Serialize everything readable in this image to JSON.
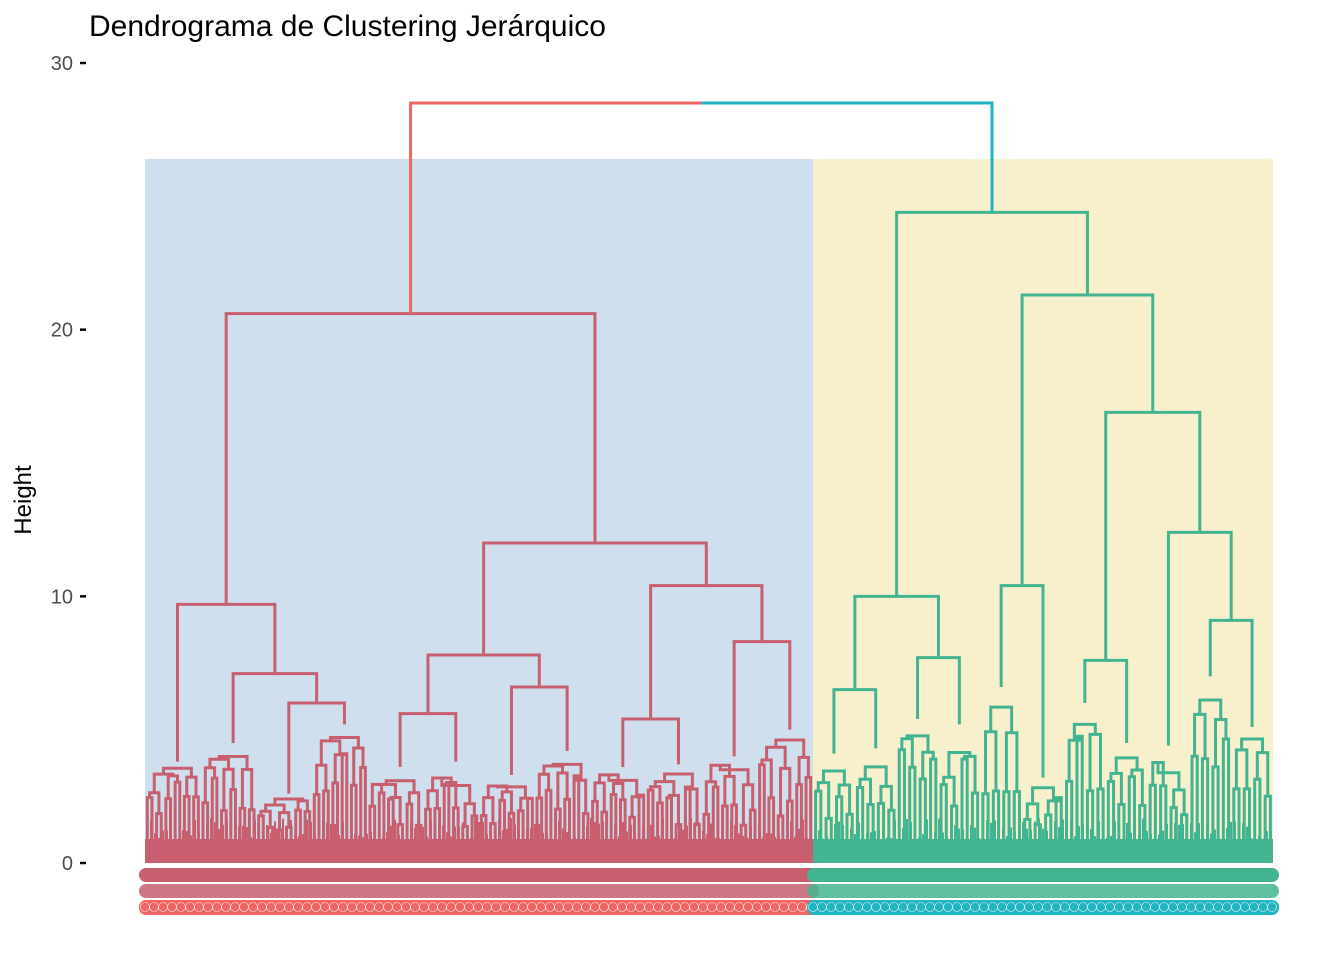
{
  "chart_data": {
    "type": "dendrogram",
    "title": "Dendrograma de Clustering Jerárquico",
    "xlabel": "",
    "ylabel": "Height",
    "ylim": [
      0,
      30
    ],
    "yticks": [
      0,
      10,
      20,
      30
    ],
    "grid": false,
    "legend": "none",
    "root_height": 28.5,
    "clusters": [
      {
        "id": 1,
        "color": "#C75F6E",
        "label_color": "#F06462",
        "rect_color": "#CFDFEE",
        "rect_top": 26.4,
        "merge_height": 20.6,
        "subclusters": [
          {
            "height": 9.7,
            "children": [
              {
                "height": 3.8
              },
              {
                "height": 7.1,
                "children": [
                  {
                    "height": 4.5
                  },
                  {
                    "height": 6.0,
                    "children": [
                      {
                        "height": 2.6
                      },
                      {
                        "height": 5.2
                      }
                    ]
                  }
                ]
              }
            ]
          },
          {
            "height": 12.0,
            "children": [
              {
                "height": 7.8,
                "children": [
                  {
                    "height": 5.6,
                    "children": [
                      {
                        "height": 3.6
                      },
                      {
                        "height": 3.8
                      }
                    ]
                  },
                  {
                    "height": 6.6,
                    "children": [
                      {
                        "height": 3.3
                      },
                      {
                        "height": 4.2
                      }
                    ]
                  }
                ]
              },
              {
                "height": 10.4,
                "children": [
                  {
                    "height": 5.4,
                    "children": [
                      {
                        "height": 3.6
                      },
                      {
                        "height": 3.7
                      }
                    ]
                  },
                  {
                    "height": 8.3,
                    "children": [
                      {
                        "height": 4.0
                      },
                      {
                        "height": 5.0
                      }
                    ]
                  }
                ]
              }
            ]
          }
        ]
      },
      {
        "id": 2,
        "color": "#43B491",
        "label_color": "#20B5C0",
        "rect_color": "#F8EFCD",
        "rect_top": 26.4,
        "merge_height": 24.4,
        "subclusters": [
          {
            "height": 10.0,
            "children": [
              {
                "height": 6.5,
                "children": [
                  {
                    "height": 4.1
                  },
                  {
                    "height": 4.3
                  }
                ]
              },
              {
                "height": 7.7,
                "children": [
                  {
                    "height": 5.4
                  },
                  {
                    "height": 5.2
                  }
                ]
              }
            ]
          },
          {
            "height": 21.3,
            "children": [
              {
                "height": 10.4,
                "children": [
                  {
                    "height": 6.6
                  },
                  {
                    "height": 3.2
                  }
                ]
              },
              {
                "height": 16.9,
                "children": [
                  {
                    "height": 7.6,
                    "children": [
                      {
                        "height": 6.0
                      },
                      {
                        "height": 4.5
                      }
                    ]
                  },
                  {
                    "height": 12.4,
                    "children": [
                      {
                        "height": 4.4
                      },
                      {
                        "height": 9.1,
                        "children": [
                          {
                            "height": 7.0
                          },
                          {
                            "height": 5.1
                          }
                        ]
                      }
                    ]
                  }
                ]
              }
            ]
          }
        ]
      }
    ]
  }
}
